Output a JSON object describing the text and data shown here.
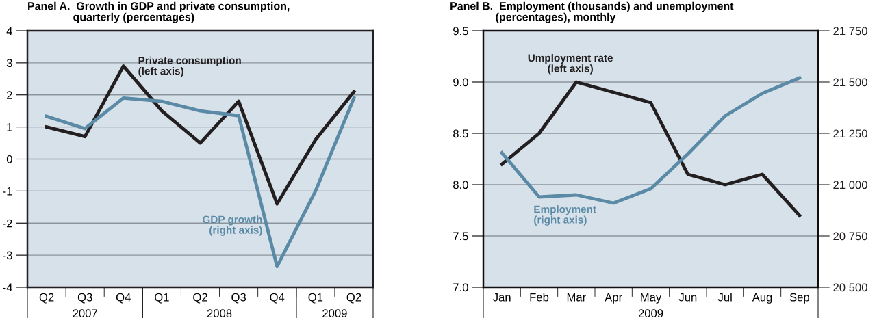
{
  "chart_data": [
    {
      "type": "line",
      "title": "Panel A.  Growth in GDP and private consumption,\n               quarterly (percentages)",
      "categories": [
        "Q2",
        "Q3",
        "Q4",
        "Q1",
        "Q2",
        "Q3",
        "Q4",
        "Q1",
        "Q2"
      ],
      "series": [
        {
          "name": "Private consumption\n(left axis)",
          "color": "#231f20",
          "values": [
            1.0,
            0.7,
            2.9,
            1.5,
            0.5,
            1.8,
            -1.4,
            0.6,
            2.1
          ]
        },
        {
          "name": "GDP growth\n(right axis)",
          "color": "#5b8aa6",
          "values": [
            1.33,
            0.95,
            1.9,
            1.8,
            1.5,
            1.35,
            -3.35,
            -1.0,
            1.9
          ]
        }
      ],
      "ylim": [
        -4,
        4
      ],
      "yticks": [
        -4,
        -3,
        -2,
        -1,
        0,
        1,
        2,
        3,
        4
      ],
      "grid": "y",
      "legend": false,
      "marker": "none",
      "line_style": "solid",
      "annotations": [
        "2007",
        "2008",
        "2009"
      ]
    },
    {
      "type": "line",
      "title": "Panel B.  Employment (thousands) and unemployment\n               (percentages), monthly",
      "categories": [
        "Jan",
        "Feb",
        "Mar",
        "Apr",
        "May",
        "Jun",
        "Jul",
        "Aug",
        "Sep"
      ],
      "series": [
        {
          "name": "Umployment rate\n(left axis)",
          "color": "#231f20",
          "values": [
            8.2,
            8.5,
            9.0,
            8.9,
            8.8,
            8.1,
            8.0,
            8.1,
            7.7
          ]
        },
        {
          "name": "Employment\n(right axis)",
          "color": "#5b8aa6",
          "axis": "y2",
          "values": [
            21155,
            20940,
            20950,
            20910,
            20980,
            21150,
            21335,
            21445,
            21520
          ]
        }
      ],
      "ylim": [
        7,
        9.5
      ],
      "yticks": [
        {
          "value": 7,
          "label": "7.0"
        },
        {
          "value": 7.5,
          "label": "7.5"
        },
        {
          "value": 8,
          "label": "8.0"
        },
        {
          "value": 8.5,
          "label": "8.5"
        },
        {
          "value": 9,
          "label": "9.0"
        },
        {
          "value": 9.5,
          "label": "9.5"
        }
      ],
      "y2lim": [
        20500,
        21750
      ],
      "y2ticks": [
        {
          "value": 20500,
          "label": "20 500"
        },
        {
          "value": 20750,
          "label": "20 750"
        },
        {
          "value": 21000,
          "label": "21 000"
        },
        {
          "value": 21250,
          "label": "21 250"
        },
        {
          "value": 21500,
          "label": "21 500"
        },
        {
          "value": 21750,
          "label": "21 750"
        }
      ],
      "grid": "y",
      "legend": false,
      "marker": "none",
      "line_style": "solid",
      "annotations": [
        "2009"
      ]
    }
  ]
}
